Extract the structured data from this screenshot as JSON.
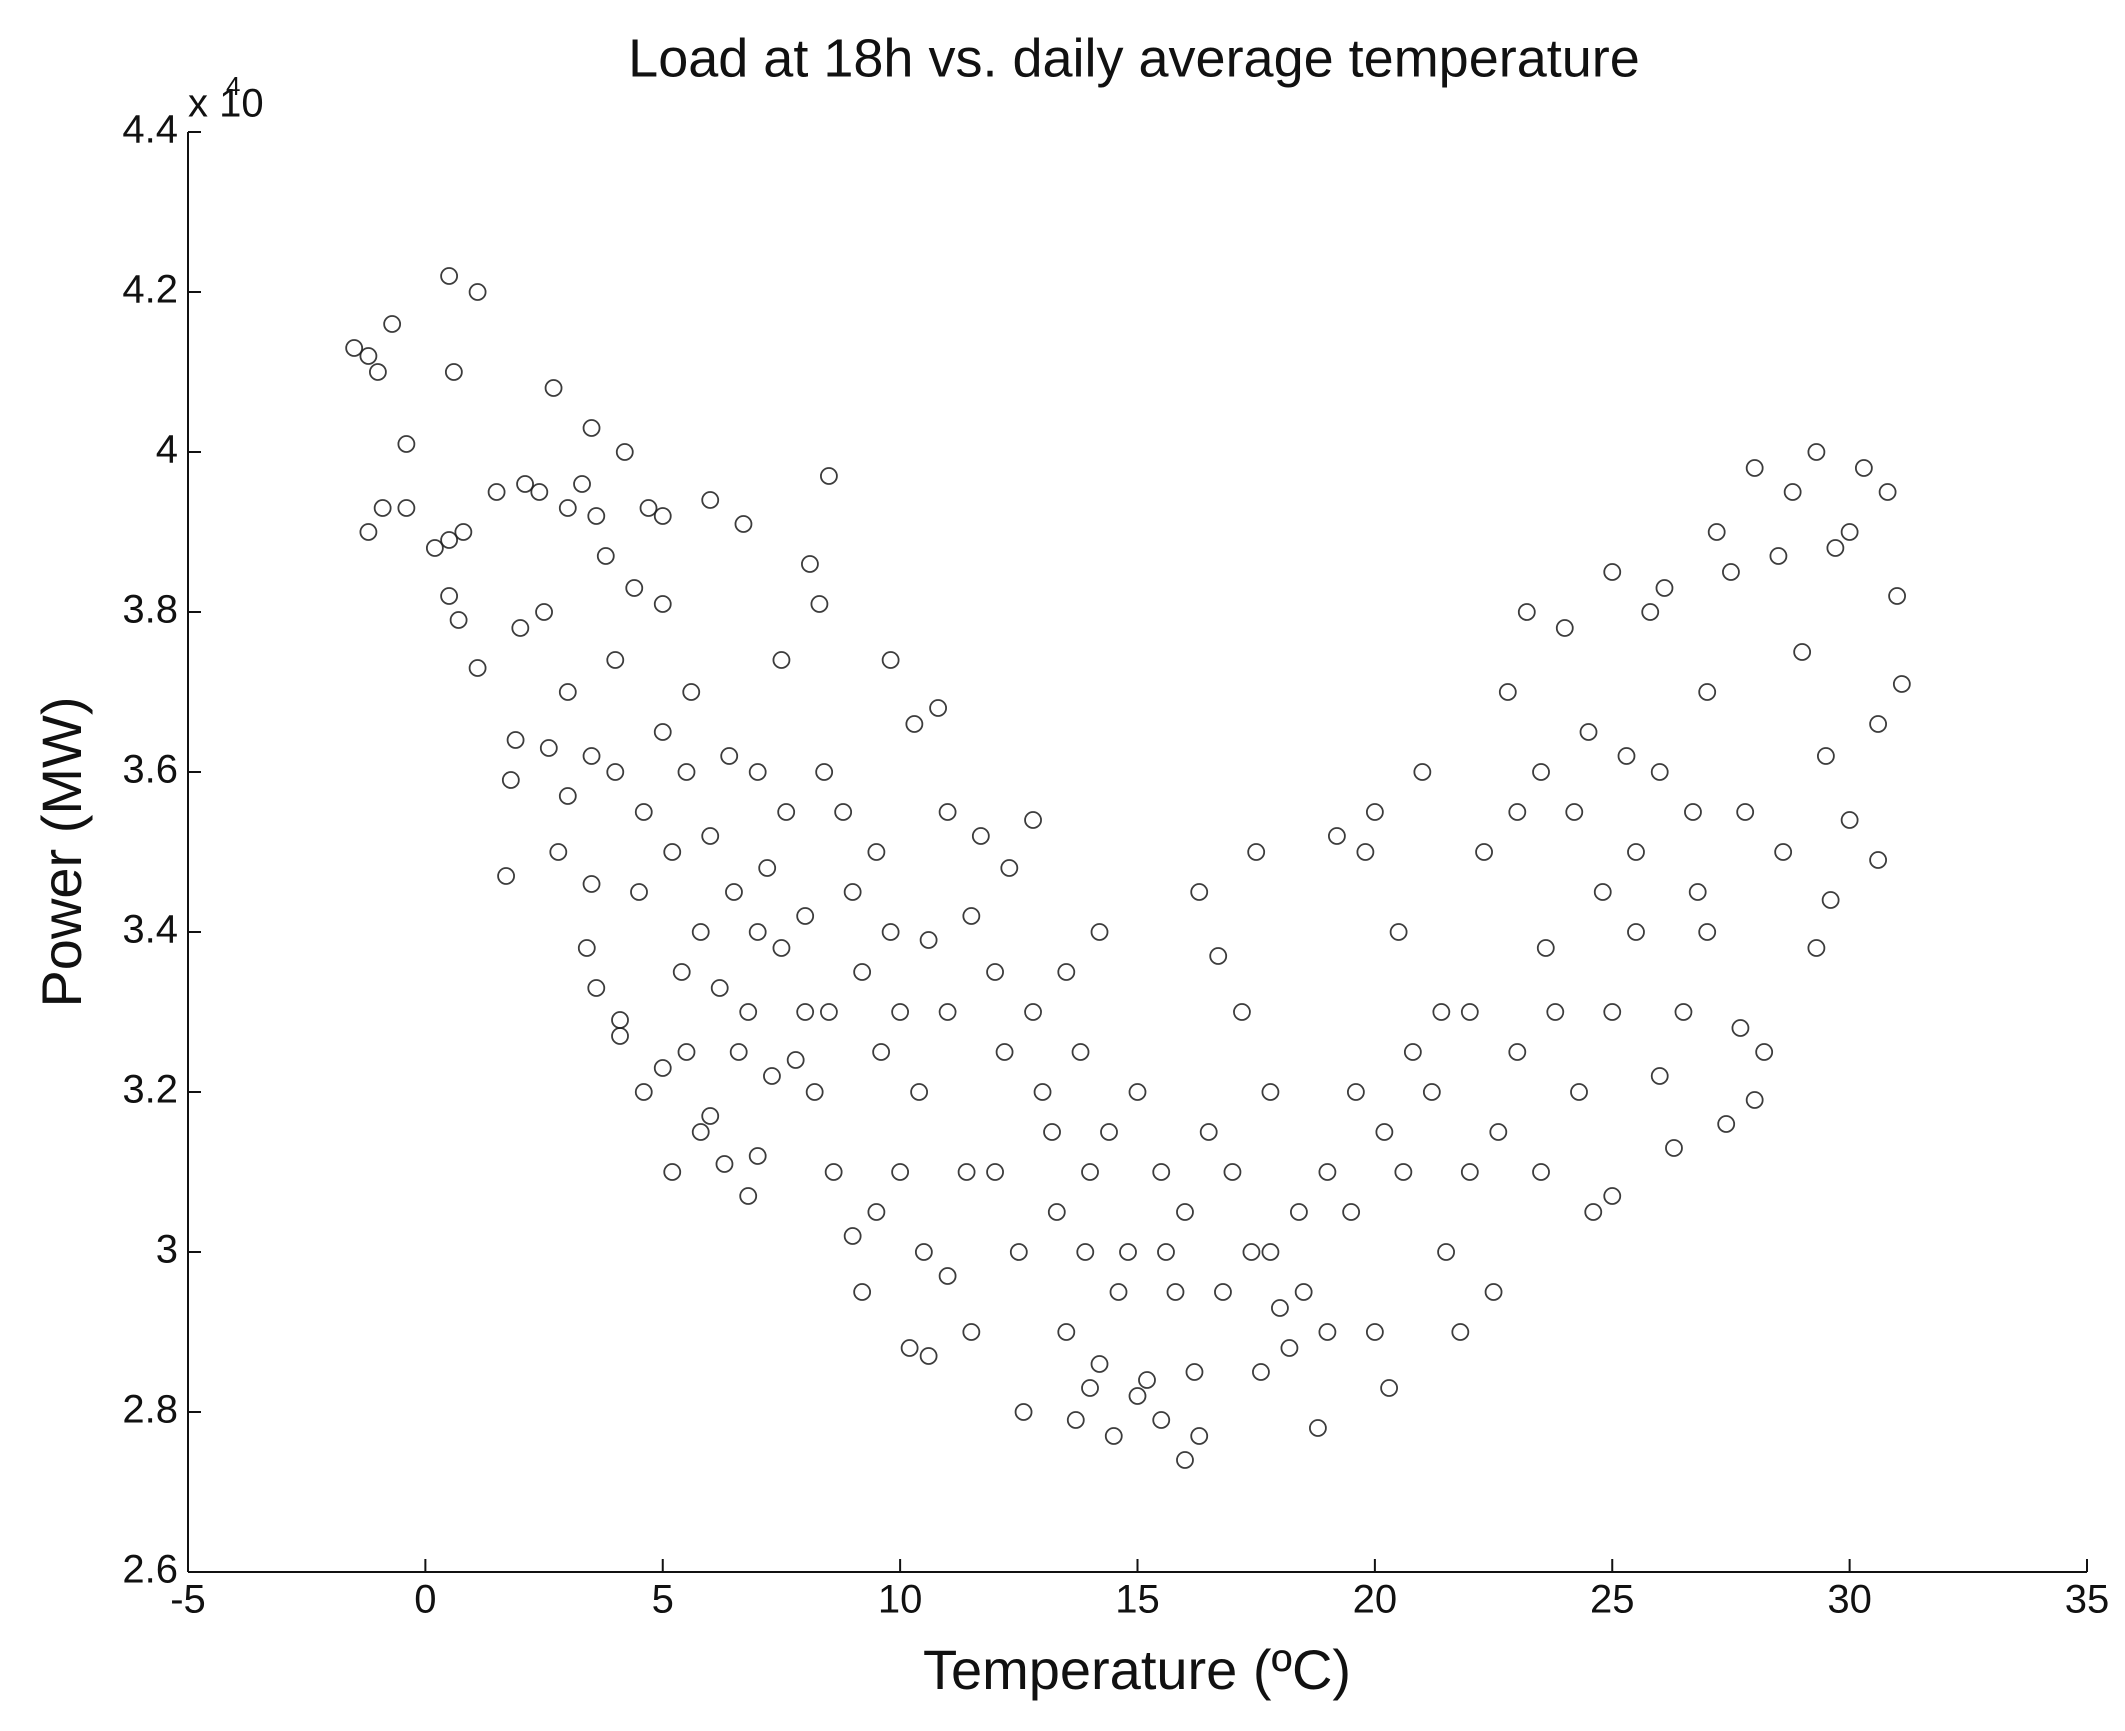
{
  "chart_data": {
    "type": "scatter",
    "title": "Load at 18h vs. daily average temperature",
    "x_label": "Temperature (ºC)",
    "y_label": "Power (MW)",
    "y_multiplier": "x 10",
    "y_multiplier_exponent": "4",
    "color": "#1a1a1a",
    "marker": "open-circle",
    "xlim": [
      -5,
      35
    ],
    "xticks": [
      -5,
      0,
      5,
      10,
      15,
      20,
      25,
      30,
      35
    ],
    "ylim": [
      2.6,
      4.4
    ],
    "yticks": [
      2.6,
      2.8,
      3,
      3.2,
      3.4,
      3.6,
      3.8,
      4,
      4.2,
      4.4
    ],
    "grid": false,
    "x": [
      -1.5,
      -1.2,
      -1,
      -0.7,
      0.5,
      1.1,
      0.6,
      2.7,
      -0.4,
      -1.2,
      -0.9,
      -0.4,
      0.2,
      0.5,
      0.8,
      0.5,
      0.7,
      1.1,
      1.5,
      2.1,
      2.4,
      2.0,
      1.7,
      1.8,
      1.9,
      2.6,
      2.8,
      3.0,
      3.4,
      3.5,
      3.6,
      3.5,
      4.2,
      3.3,
      3.6,
      3.8,
      3.0,
      4.0,
      4.4,
      4.7,
      5.0,
      5.0,
      4.1,
      4.1,
      4.6,
      5.2,
      5.0,
      5.5,
      5.8,
      6.3,
      6.8,
      6.0,
      7.0,
      8.5,
      8.1,
      6.0,
      6.7,
      9.8,
      8.3,
      7.5,
      5.5,
      6.0,
      6.5,
      7.0,
      7.5,
      8.0,
      5.2,
      5.8,
      6.2,
      6.8,
      7.3,
      7.8,
      8.2,
      8.6,
      9.0,
      9.2,
      9.5,
      8.5,
      9.0,
      9.5,
      10.0,
      10.4,
      10.6,
      10.8,
      10.3,
      11.0,
      11.5,
      12.0,
      12.3,
      12.8,
      11.7,
      10.2,
      10.6,
      11.0,
      11.5,
      12.0,
      12.5,
      12.6,
      13.0,
      13.3,
      13.5,
      13.7,
      14.0,
      14.2,
      14.5,
      15.0,
      15.2,
      15.5,
      16.0,
      16.3,
      16.2,
      15.8,
      14.8,
      14.0,
      13.8,
      13.5,
      14.2,
      12.8,
      13.2,
      15.0,
      15.5,
      16.0,
      16.5,
      17.0,
      16.3,
      16.7,
      17.5,
      17.2,
      17.8,
      18.0,
      18.5,
      18.2,
      17.6,
      18.8,
      19.0,
      19.5,
      19.2,
      19.8,
      20.0,
      20.5,
      21.0,
      20.3,
      20.0,
      20.6,
      21.2,
      21.5,
      21.8,
      22.0,
      22.5,
      22.3,
      23.0,
      23.2,
      23.5,
      22.8,
      24.0,
      24.5,
      25.0,
      24.6,
      25.0,
      24.3,
      23.8,
      23.5,
      25.5,
      25.3,
      25.8,
      26.1,
      26.3,
      26.0,
      26.5,
      26.8,
      27.0,
      27.2,
      27.5,
      27.4,
      27.7,
      28.0,
      28.2,
      28.0,
      28.5,
      28.8,
      29.3,
      29.0,
      29.5,
      29.7,
      30.0,
      30.3,
      30.6,
      30.8,
      31.0,
      31.1,
      30.6,
      30.0,
      29.6,
      29.3,
      28.6,
      27.8,
      27.0,
      26.7,
      26.0,
      25.5,
      25.0,
      24.8,
      24.2,
      23.6,
      23.0,
      22.6,
      22.0,
      21.4,
      20.8,
      20.2,
      19.6,
      19.0,
      18.4,
      17.8,
      17.4,
      16.8,
      15.6,
      14.6,
      14.4,
      13.9,
      12.2,
      11.4,
      11.0,
      10.0,
      9.6,
      9.2,
      8.8,
      8.4,
      7.6,
      7.0,
      6.4,
      5.6,
      5.0,
      4.6,
      4.0,
      3.5,
      3.0,
      2.5,
      4.5,
      5.4,
      6.6,
      7.2,
      8.0,
      9.8,
      10.5
    ],
    "values": [
      4.13,
      4.12,
      4.1,
      4.16,
      4.22,
      4.2,
      4.1,
      4.08,
      4.01,
      3.9,
      3.93,
      3.93,
      3.88,
      3.89,
      3.9,
      3.82,
      3.79,
      3.73,
      3.95,
      3.96,
      3.95,
      3.78,
      3.47,
      3.59,
      3.64,
      3.63,
      3.5,
      3.57,
      3.38,
      3.46,
      3.33,
      4.03,
      4.0,
      3.96,
      3.92,
      3.87,
      3.93,
      3.74,
      3.83,
      3.93,
      3.92,
      3.81,
      3.27,
      3.29,
      3.2,
      3.1,
      3.23,
      3.25,
      3.15,
      3.11,
      3.07,
      3.17,
      3.12,
      3.97,
      3.86,
      3.94,
      3.91,
      3.74,
      3.81,
      3.74,
      3.6,
      3.52,
      3.45,
      3.4,
      3.38,
      3.42,
      3.5,
      3.4,
      3.33,
      3.3,
      3.22,
      3.24,
      3.2,
      3.1,
      3.02,
      2.95,
      3.05,
      3.3,
      3.45,
      3.5,
      3.3,
      3.2,
      3.39,
      3.68,
      3.66,
      3.55,
      3.42,
      3.35,
      3.48,
      3.54,
      3.52,
      2.88,
      2.87,
      2.97,
      2.9,
      3.1,
      3.0,
      2.8,
      3.2,
      3.05,
      2.9,
      2.79,
      2.83,
      2.86,
      2.77,
      2.82,
      2.84,
      2.79,
      2.74,
      2.77,
      2.85,
      2.95,
      3.0,
      3.1,
      3.25,
      3.35,
      3.4,
      3.3,
      3.15,
      3.2,
      3.1,
      3.05,
      3.15,
      3.1,
      3.45,
      3.37,
      3.5,
      3.3,
      3.0,
      2.93,
      2.95,
      2.88,
      2.85,
      2.78,
      2.9,
      3.05,
      3.52,
      3.5,
      3.55,
      3.4,
      3.6,
      2.83,
      2.9,
      3.1,
      3.2,
      3.0,
      2.9,
      3.3,
      2.95,
      3.5,
      3.55,
      3.8,
      3.6,
      3.7,
      3.78,
      3.65,
      3.85,
      3.05,
      3.07,
      3.2,
      3.3,
      3.1,
      3.4,
      3.62,
      3.8,
      3.83,
      3.13,
      3.22,
      3.3,
      3.45,
      3.7,
      3.9,
      3.85,
      3.16,
      3.28,
      3.19,
      3.25,
      3.98,
      3.87,
      3.95,
      4.0,
      3.75,
      3.62,
      3.88,
      3.9,
      3.98,
      3.66,
      3.95,
      3.82,
      3.71,
      3.49,
      3.54,
      3.44,
      3.38,
      3.5,
      3.55,
      3.4,
      3.55,
      3.6,
      3.5,
      3.3,
      3.45,
      3.55,
      3.38,
      3.25,
      3.15,
      3.1,
      3.3,
      3.25,
      3.15,
      3.2,
      3.1,
      3.05,
      3.2,
      3.0,
      2.95,
      3.0,
      2.95,
      3.15,
      3.0,
      3.25,
      3.1,
      3.3,
      3.1,
      3.25,
      3.35,
      3.55,
      3.6,
      3.55,
      3.6,
      3.62,
      3.7,
      3.65,
      3.55,
      3.6,
      3.62,
      3.7,
      3.8,
      3.45,
      3.35,
      3.25,
      3.48,
      3.3,
      3.4,
      3.0
    ]
  }
}
